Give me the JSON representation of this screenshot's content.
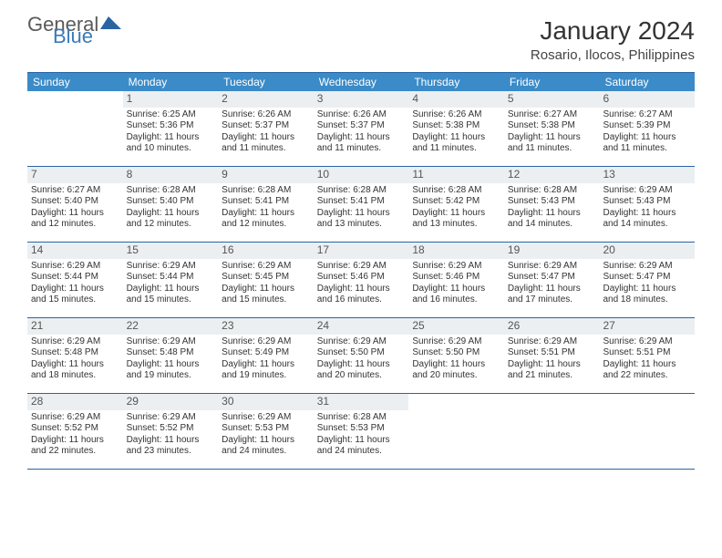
{
  "logo": {
    "part1": "General",
    "part2": "Blue"
  },
  "title": "January 2024",
  "location": "Rosario, Ilocos, Philippines",
  "colors": {
    "header_bg": "#3b8bc8",
    "border": "#2a65a3",
    "daynum_bg": "#eceff1",
    "text": "#333333",
    "logo_gray": "#5a5a5a",
    "logo_blue": "#3a7ab8"
  },
  "day_headers": [
    "Sunday",
    "Monday",
    "Tuesday",
    "Wednesday",
    "Thursday",
    "Friday",
    "Saturday"
  ],
  "weeks": [
    [
      {
        "empty": true
      },
      {
        "num": "1",
        "sunrise": "Sunrise: 6:25 AM",
        "sunset": "Sunset: 5:36 PM",
        "dl1": "Daylight: 11 hours",
        "dl2": "and 10 minutes."
      },
      {
        "num": "2",
        "sunrise": "Sunrise: 6:26 AM",
        "sunset": "Sunset: 5:37 PM",
        "dl1": "Daylight: 11 hours",
        "dl2": "and 11 minutes."
      },
      {
        "num": "3",
        "sunrise": "Sunrise: 6:26 AM",
        "sunset": "Sunset: 5:37 PM",
        "dl1": "Daylight: 11 hours",
        "dl2": "and 11 minutes."
      },
      {
        "num": "4",
        "sunrise": "Sunrise: 6:26 AM",
        "sunset": "Sunset: 5:38 PM",
        "dl1": "Daylight: 11 hours",
        "dl2": "and 11 minutes."
      },
      {
        "num": "5",
        "sunrise": "Sunrise: 6:27 AM",
        "sunset": "Sunset: 5:38 PM",
        "dl1": "Daylight: 11 hours",
        "dl2": "and 11 minutes."
      },
      {
        "num": "6",
        "sunrise": "Sunrise: 6:27 AM",
        "sunset": "Sunset: 5:39 PM",
        "dl1": "Daylight: 11 hours",
        "dl2": "and 11 minutes."
      }
    ],
    [
      {
        "num": "7",
        "sunrise": "Sunrise: 6:27 AM",
        "sunset": "Sunset: 5:40 PM",
        "dl1": "Daylight: 11 hours",
        "dl2": "and 12 minutes."
      },
      {
        "num": "8",
        "sunrise": "Sunrise: 6:28 AM",
        "sunset": "Sunset: 5:40 PM",
        "dl1": "Daylight: 11 hours",
        "dl2": "and 12 minutes."
      },
      {
        "num": "9",
        "sunrise": "Sunrise: 6:28 AM",
        "sunset": "Sunset: 5:41 PM",
        "dl1": "Daylight: 11 hours",
        "dl2": "and 12 minutes."
      },
      {
        "num": "10",
        "sunrise": "Sunrise: 6:28 AM",
        "sunset": "Sunset: 5:41 PM",
        "dl1": "Daylight: 11 hours",
        "dl2": "and 13 minutes."
      },
      {
        "num": "11",
        "sunrise": "Sunrise: 6:28 AM",
        "sunset": "Sunset: 5:42 PM",
        "dl1": "Daylight: 11 hours",
        "dl2": "and 13 minutes."
      },
      {
        "num": "12",
        "sunrise": "Sunrise: 6:28 AM",
        "sunset": "Sunset: 5:43 PM",
        "dl1": "Daylight: 11 hours",
        "dl2": "and 14 minutes."
      },
      {
        "num": "13",
        "sunrise": "Sunrise: 6:29 AM",
        "sunset": "Sunset: 5:43 PM",
        "dl1": "Daylight: 11 hours",
        "dl2": "and 14 minutes."
      }
    ],
    [
      {
        "num": "14",
        "sunrise": "Sunrise: 6:29 AM",
        "sunset": "Sunset: 5:44 PM",
        "dl1": "Daylight: 11 hours",
        "dl2": "and 15 minutes."
      },
      {
        "num": "15",
        "sunrise": "Sunrise: 6:29 AM",
        "sunset": "Sunset: 5:44 PM",
        "dl1": "Daylight: 11 hours",
        "dl2": "and 15 minutes."
      },
      {
        "num": "16",
        "sunrise": "Sunrise: 6:29 AM",
        "sunset": "Sunset: 5:45 PM",
        "dl1": "Daylight: 11 hours",
        "dl2": "and 15 minutes."
      },
      {
        "num": "17",
        "sunrise": "Sunrise: 6:29 AM",
        "sunset": "Sunset: 5:46 PM",
        "dl1": "Daylight: 11 hours",
        "dl2": "and 16 minutes."
      },
      {
        "num": "18",
        "sunrise": "Sunrise: 6:29 AM",
        "sunset": "Sunset: 5:46 PM",
        "dl1": "Daylight: 11 hours",
        "dl2": "and 16 minutes."
      },
      {
        "num": "19",
        "sunrise": "Sunrise: 6:29 AM",
        "sunset": "Sunset: 5:47 PM",
        "dl1": "Daylight: 11 hours",
        "dl2": "and 17 minutes."
      },
      {
        "num": "20",
        "sunrise": "Sunrise: 6:29 AM",
        "sunset": "Sunset: 5:47 PM",
        "dl1": "Daylight: 11 hours",
        "dl2": "and 18 minutes."
      }
    ],
    [
      {
        "num": "21",
        "sunrise": "Sunrise: 6:29 AM",
        "sunset": "Sunset: 5:48 PM",
        "dl1": "Daylight: 11 hours",
        "dl2": "and 18 minutes."
      },
      {
        "num": "22",
        "sunrise": "Sunrise: 6:29 AM",
        "sunset": "Sunset: 5:48 PM",
        "dl1": "Daylight: 11 hours",
        "dl2": "and 19 minutes."
      },
      {
        "num": "23",
        "sunrise": "Sunrise: 6:29 AM",
        "sunset": "Sunset: 5:49 PM",
        "dl1": "Daylight: 11 hours",
        "dl2": "and 19 minutes."
      },
      {
        "num": "24",
        "sunrise": "Sunrise: 6:29 AM",
        "sunset": "Sunset: 5:50 PM",
        "dl1": "Daylight: 11 hours",
        "dl2": "and 20 minutes."
      },
      {
        "num": "25",
        "sunrise": "Sunrise: 6:29 AM",
        "sunset": "Sunset: 5:50 PM",
        "dl1": "Daylight: 11 hours",
        "dl2": "and 20 minutes."
      },
      {
        "num": "26",
        "sunrise": "Sunrise: 6:29 AM",
        "sunset": "Sunset: 5:51 PM",
        "dl1": "Daylight: 11 hours",
        "dl2": "and 21 minutes."
      },
      {
        "num": "27",
        "sunrise": "Sunrise: 6:29 AM",
        "sunset": "Sunset: 5:51 PM",
        "dl1": "Daylight: 11 hours",
        "dl2": "and 22 minutes."
      }
    ],
    [
      {
        "num": "28",
        "sunrise": "Sunrise: 6:29 AM",
        "sunset": "Sunset: 5:52 PM",
        "dl1": "Daylight: 11 hours",
        "dl2": "and 22 minutes."
      },
      {
        "num": "29",
        "sunrise": "Sunrise: 6:29 AM",
        "sunset": "Sunset: 5:52 PM",
        "dl1": "Daylight: 11 hours",
        "dl2": "and 23 minutes."
      },
      {
        "num": "30",
        "sunrise": "Sunrise: 6:29 AM",
        "sunset": "Sunset: 5:53 PM",
        "dl1": "Daylight: 11 hours",
        "dl2": "and 24 minutes."
      },
      {
        "num": "31",
        "sunrise": "Sunrise: 6:28 AM",
        "sunset": "Sunset: 5:53 PM",
        "dl1": "Daylight: 11 hours",
        "dl2": "and 24 minutes."
      },
      {
        "empty": true
      },
      {
        "empty": true
      },
      {
        "empty": true
      }
    ]
  ]
}
